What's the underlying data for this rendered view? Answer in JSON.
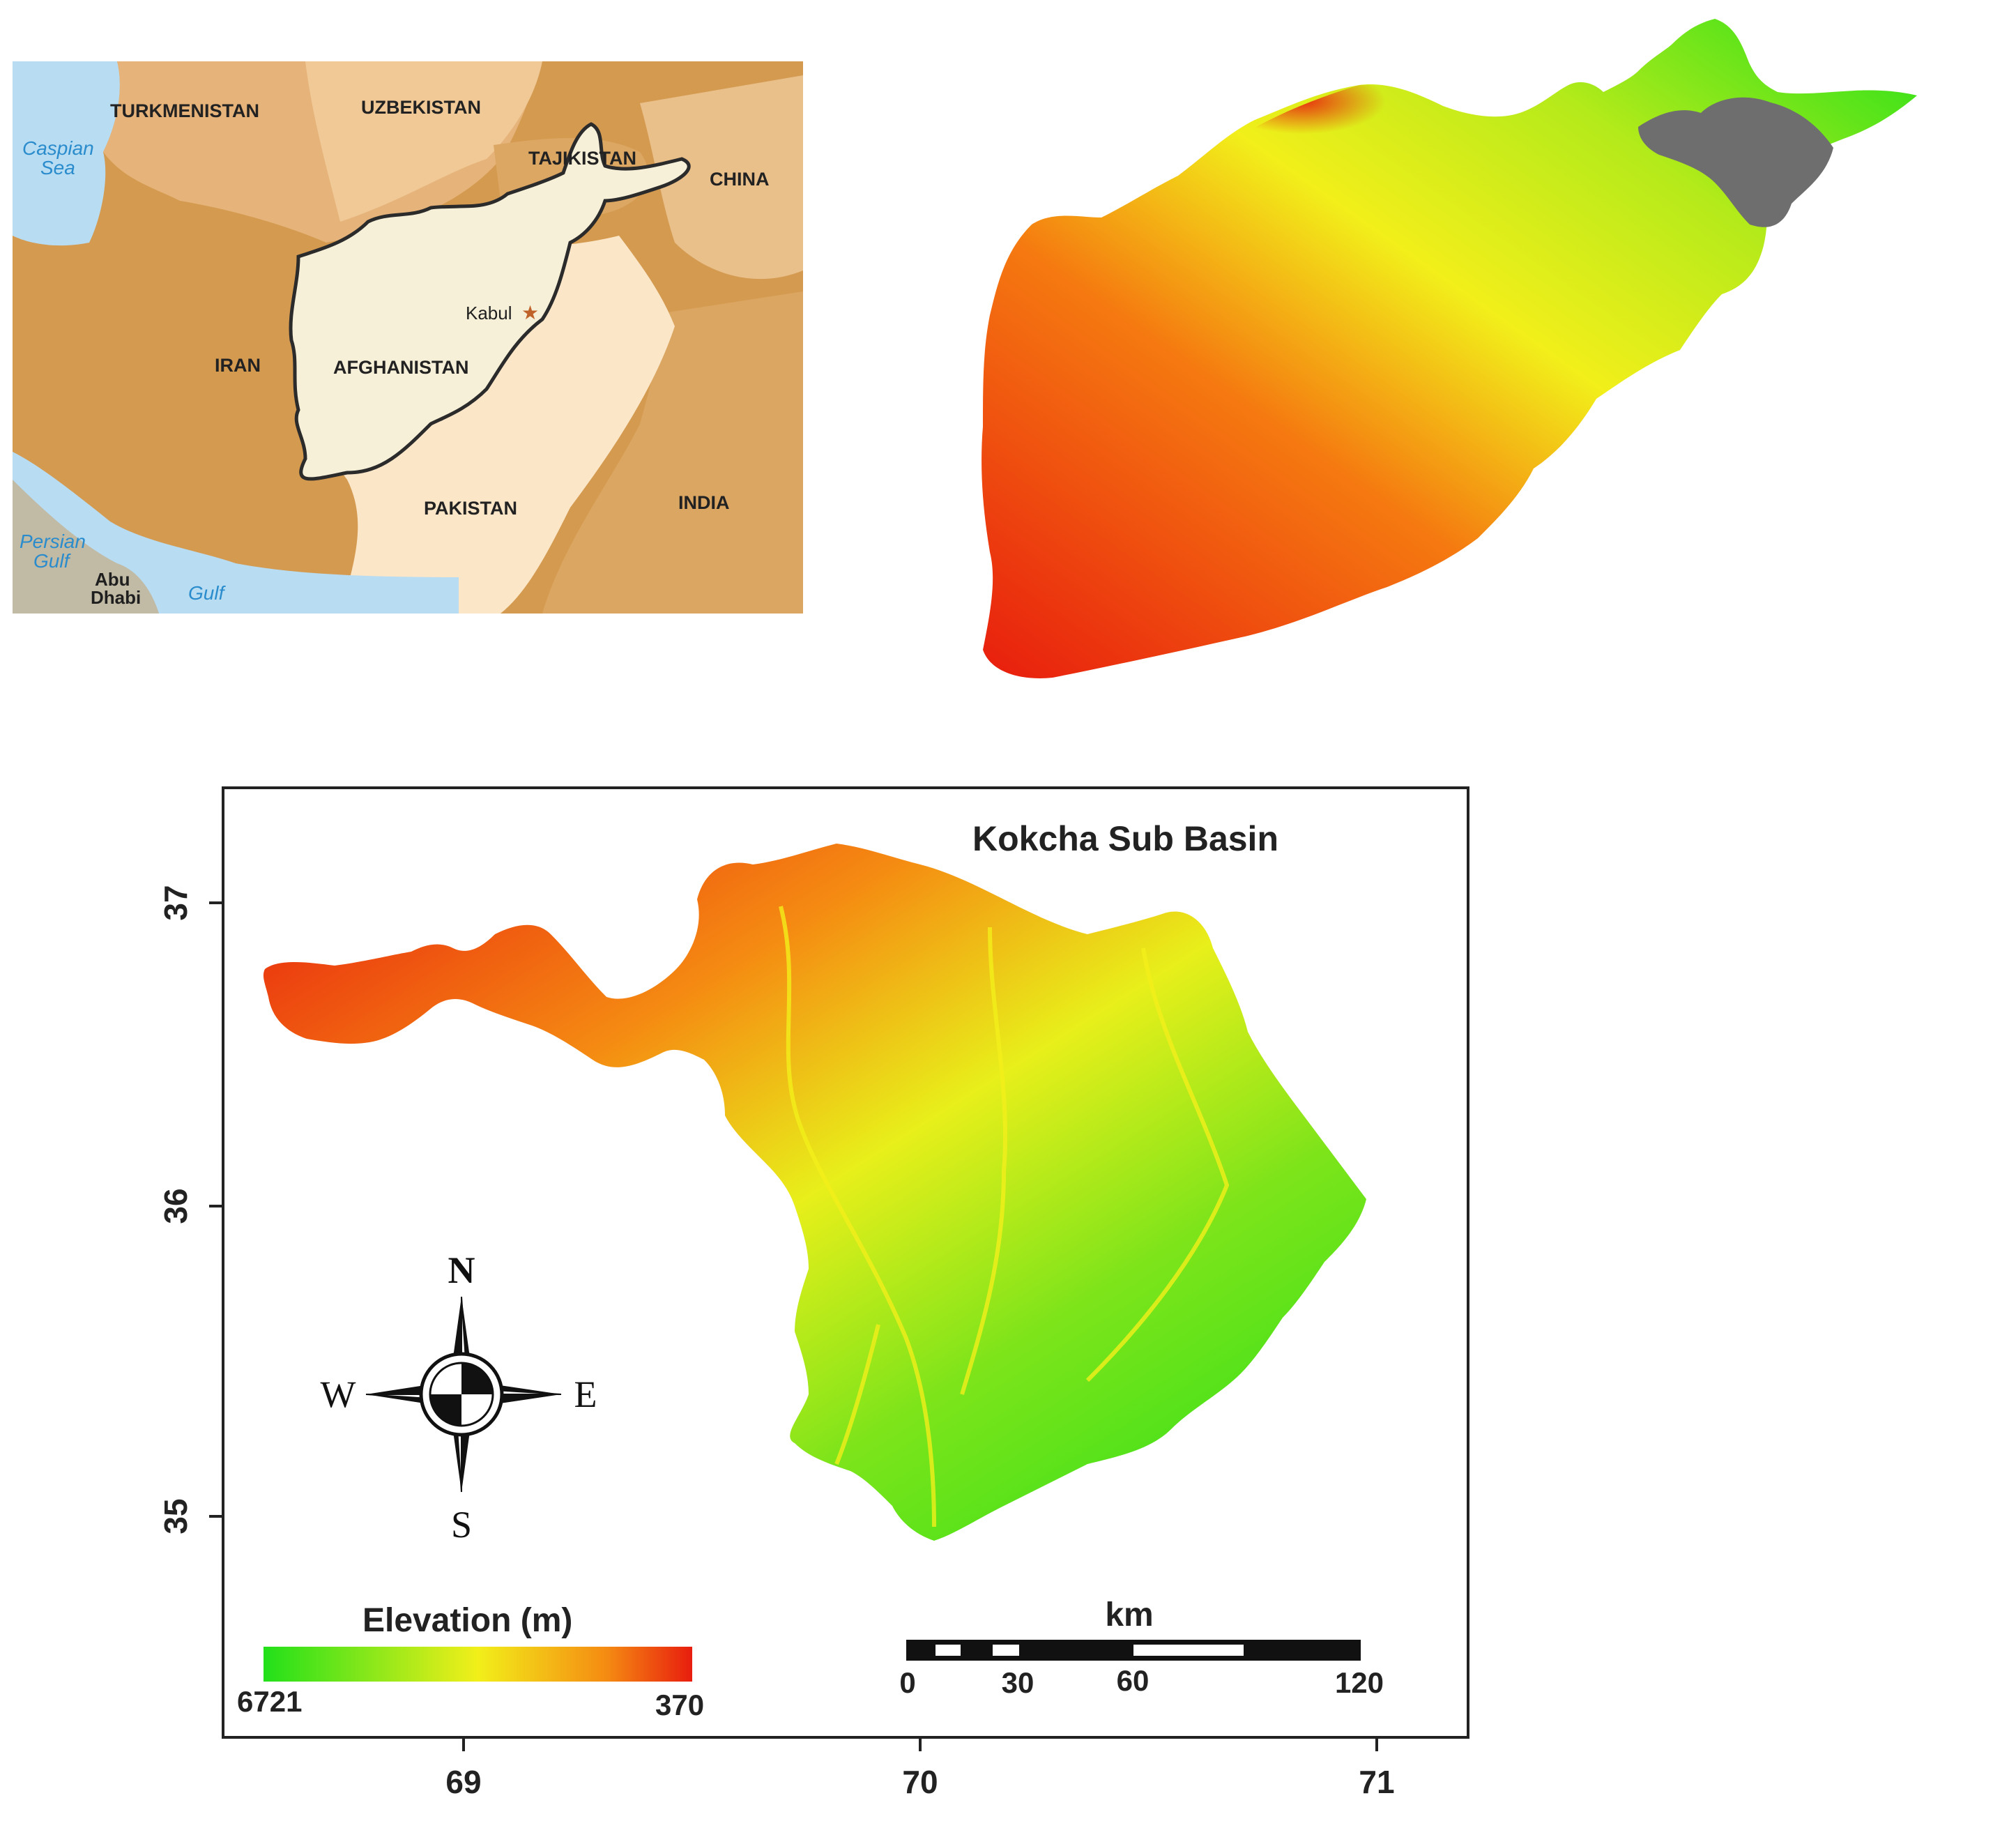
{
  "locator_map": {
    "countries": {
      "turkmenistan": "TURKMENISTAN",
      "uzbekistan": "UZBEKISTAN",
      "tajikistan": "TAJIKISTAN",
      "china": "CHINA",
      "iran": "IRAN",
      "afghanistan": "AFGHANISTAN",
      "pakistan": "PAKISTAN",
      "india": "INDIA"
    },
    "capital": "Kabul",
    "water": {
      "caspian_1": "Caspian",
      "caspian_2": "Sea",
      "persian_1": "Persian",
      "persian_2": "Gulf",
      "gulf_partial": "Gulf"
    },
    "city_1": "Abu",
    "city_2": "Dhabi",
    "colors": {
      "water": "#b8dcf2",
      "country_dark": "#d49a50",
      "country_mid": "#e6b47a",
      "country_light": "#f4d3a8",
      "pakistan": "#fbe6c8",
      "afghanistan": "#f7f0d8"
    }
  },
  "dem_map": {
    "colors": {
      "high": "#e81d0e",
      "mid": "#f2ef1a",
      "low": "#22e01a",
      "highlight": "#6e6e6e"
    }
  },
  "basin_map": {
    "title": "Kokcha Sub Basin",
    "y_ticks": [
      "37",
      "36",
      "35"
    ],
    "x_ticks": [
      "69",
      "70",
      "71"
    ],
    "compass": {
      "n": "N",
      "s": "S",
      "e": "E",
      "w": "W"
    },
    "legend": {
      "title": "Elevation (m)",
      "min": "6721",
      "max": "370"
    },
    "scale_bar": {
      "unit": "km",
      "labels": [
        "0",
        "30",
        "60",
        "120"
      ]
    }
  }
}
